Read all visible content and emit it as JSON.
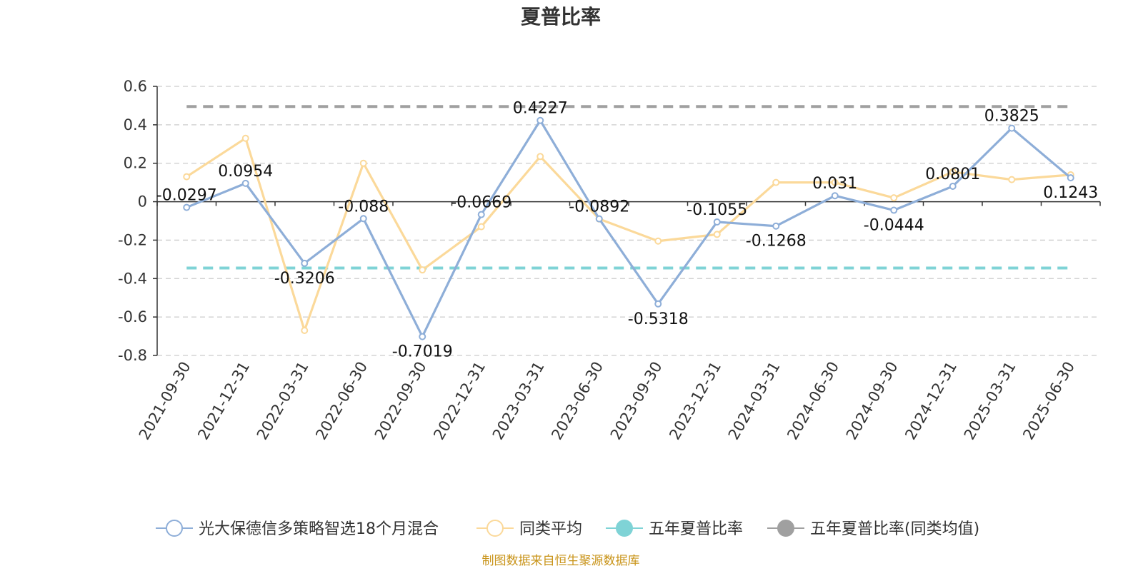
{
  "chart_data": {
    "type": "line",
    "title": "夏普比率",
    "categories": [
      "2021-09-30",
      "2021-12-31",
      "2022-03-31",
      "2022-06-30",
      "2022-09-30",
      "2022-12-31",
      "2023-03-31",
      "2023-06-30",
      "2023-09-30",
      "2023-12-31",
      "2024-03-31",
      "2024-06-30",
      "2024-09-30",
      "2024-12-31",
      "2025-03-31",
      "2025-06-30"
    ],
    "ylim": [
      -0.8,
      0.6
    ],
    "yticks": [
      0.6,
      0.4,
      0.2,
      0,
      -0.2,
      -0.4,
      -0.6,
      -0.8
    ],
    "ytick_labels": [
      "0.6",
      "0.4",
      "0.2",
      "0",
      "-0.2",
      "-0.4",
      "-0.6",
      "-0.8"
    ],
    "grid": true,
    "legend_position": "bottom",
    "series": [
      {
        "name": "光大保德信多策略智选18个月混合",
        "color": "#8eaed8",
        "values": [
          -0.0297,
          0.0954,
          -0.3206,
          -0.088,
          -0.7019,
          -0.0669,
          0.4227,
          -0.0892,
          -0.5318,
          -0.1055,
          -0.1268,
          0.031,
          -0.0444,
          0.0801,
          0.3825,
          0.1243
        ],
        "labels": [
          "-0.0297",
          "0.0954",
          "-0.3206",
          "-0.088",
          "-0.7019",
          "-0.0669",
          "0.4227",
          "-0.0892",
          "-0.5318",
          "-0.1055",
          "-0.1268",
          "0.031",
          "-0.0444",
          "0.0801",
          "0.3825",
          "0.1243"
        ]
      },
      {
        "name": "同类平均",
        "color": "#fbd99a",
        "values": [
          0.13,
          0.33,
          -0.67,
          0.2,
          -0.355,
          -0.13,
          0.235,
          -0.09,
          -0.205,
          -0.17,
          0.1,
          0.1,
          0.02,
          0.155,
          0.115,
          0.14
        ]
      }
    ],
    "reference_lines": [
      {
        "name": "五年夏普比率",
        "value": -0.345,
        "color": "#7fd3d6"
      },
      {
        "name": "五年夏普比率(同类均值)",
        "value": 0.495,
        "color": "#a0a0a0"
      }
    ],
    "source": "制图数据来自恒生聚源数据库"
  }
}
